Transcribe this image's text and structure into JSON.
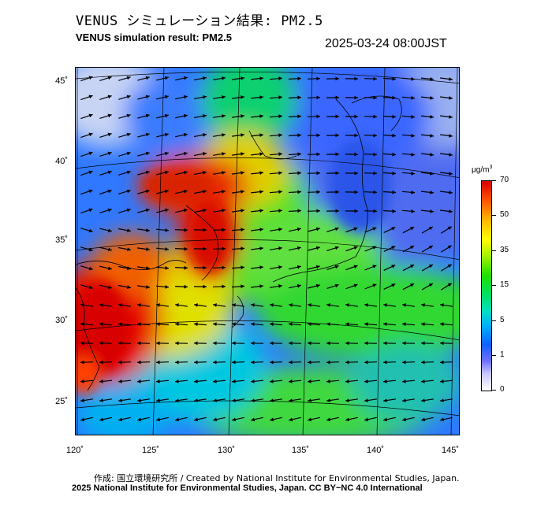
{
  "title_jp": "VENUS シミュレーション結果: PM2.5",
  "title_en": "VENUS simulation result: PM2.5",
  "timestamp": "2025-03-24 08:00JST",
  "map": {
    "lat_labels": [
      "45˚",
      "40˚",
      "35˚",
      "30˚",
      "25˚"
    ],
    "lon_labels": [
      "120˚",
      "125˚",
      "130˚",
      "135˚",
      "140˚",
      "145˚"
    ],
    "extent": {
      "lon_min": 120,
      "lon_max": 145,
      "lat_min": 23,
      "lat_max": 46
    }
  },
  "colorbar": {
    "unit": "μg/m",
    "unit_sup": "3",
    "labels": [
      "70",
      "50",
      "35",
      "15",
      "5",
      "1",
      "0"
    ],
    "colors": [
      "#d80000",
      "#ff5000",
      "#ffb000",
      "#ffff00",
      "#20e000",
      "#00e0c0",
      "#00a8ff",
      "#1060ff",
      "#7070ff",
      "#c8c8ff",
      "#ffffff"
    ]
  },
  "credit_line1": "作成: 国立環境研究所 / Created by National Institute for Environmental Studies, Japan.",
  "credit_line2": "2025 National Institute for Environmental Studies, Japan. CC BY−NC 4.0 International"
}
